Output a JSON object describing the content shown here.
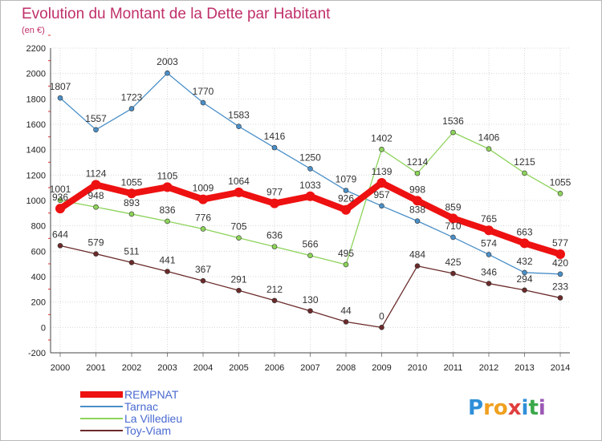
{
  "chart_data": {
    "type": "line",
    "title": "Evolution du Montant de la Dette par Habitant",
    "subtitle": "(en €)",
    "xlabel": "",
    "ylabel": "",
    "x": [
      2000,
      2001,
      2002,
      2003,
      2004,
      2005,
      2006,
      2007,
      2008,
      2009,
      2010,
      2011,
      2012,
      2013,
      2014
    ],
    "x_ticks": [
      "2000",
      "2001",
      "2002",
      "2003",
      "2004",
      "2005",
      "2006",
      "2007",
      "2008",
      "2009",
      "2010",
      "2011",
      "2012",
      "2013",
      "2014"
    ],
    "ylim": [
      -200,
      2200
    ],
    "y_ticks": [
      "-200",
      "0",
      "200",
      "400",
      "600",
      "800",
      "1000",
      "1200",
      "1400",
      "1600",
      "1800",
      "2000",
      "2200"
    ],
    "grid": true,
    "legend_position": "bottom-left",
    "series": [
      {
        "name": "Tarnac",
        "color": "#4a8fc8",
        "values": [
          1807,
          1557,
          1723,
          2003,
          1770,
          1583,
          1416,
          1250,
          1079,
          957,
          838,
          710,
          574,
          432,
          420
        ],
        "labels": [
          "1807",
          "1557",
          "1723",
          "2003",
          "1770",
          "1583",
          "1416",
          "1250",
          "1079",
          "957",
          "838",
          "710",
          "574",
          "432",
          "420"
        ]
      },
      {
        "name": "La Villedieu",
        "color": "#8dd35a",
        "values": [
          1001,
          948,
          893,
          836,
          776,
          705,
          636,
          566,
          495,
          1402,
          1214,
          1536,
          1406,
          1215,
          1055
        ],
        "labels": [
          "1001",
          "948",
          "893",
          "836",
          "776",
          "705",
          "636",
          "566",
          "495",
          "1402",
          "1214",
          "1536",
          "1406",
          "1215",
          "1055"
        ]
      },
      {
        "name": "Toy-Viam",
        "color": "#6b2a2a",
        "values": [
          644,
          579,
          511,
          441,
          367,
          291,
          212,
          130,
          44,
          0,
          484,
          425,
          346,
          294,
          233
        ],
        "labels": [
          "644",
          "579",
          "511",
          "441",
          "367",
          "291",
          "212",
          "130",
          "44",
          "0",
          "484",
          "425",
          "346",
          "294",
          "233"
        ]
      },
      {
        "name": "REMPNAT",
        "color": "#ee1111",
        "values": [
          936,
          1124,
          1055,
          1105,
          1009,
          1064,
          977,
          1033,
          926,
          1139,
          998,
          859,
          765,
          663,
          577
        ],
        "labels": [
          "936",
          "1124",
          "1055",
          "1105",
          "1009",
          "1064",
          "977",
          "1033",
          "926",
          "1139",
          "998",
          "859",
          "765",
          "663",
          "577"
        ]
      }
    ],
    "legend": [
      "REMPNAT",
      "Tarnac",
      "La Villedieu",
      "Toy-Viam"
    ]
  },
  "logo": {
    "letters": [
      "P",
      "r",
      "o",
      "x",
      "i",
      "t",
      "i"
    ],
    "colors": [
      "#2f8fd8",
      "#f0a020",
      "#f0a020",
      "#e04040",
      "#2f8fd8",
      "#3aa84a",
      "#9b59b6"
    ]
  }
}
